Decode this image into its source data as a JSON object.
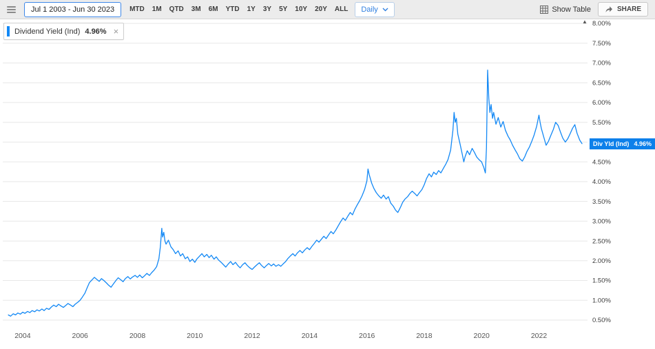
{
  "toolbar": {
    "date_range": "Jul 1 2003 - Jun 30 2023",
    "periods": [
      "MTD",
      "1M",
      "QTD",
      "3M",
      "6M",
      "YTD",
      "1Y",
      "3Y",
      "5Y",
      "10Y",
      "20Y",
      "ALL"
    ],
    "frequency": "Daily",
    "show_table_label": "Show Table",
    "share_label": "SHARE"
  },
  "legend": {
    "series_label": "Dividend Yield (Ind)",
    "value": "4.96%"
  },
  "value_tag": {
    "label": "Div Yld (Ind)",
    "value": "4.96%"
  },
  "icons": {
    "close": "×",
    "axis_scroll": "▲"
  },
  "colors": {
    "line": "#1288f5",
    "tag_bg": "#0d80ea",
    "accent": "#3d87e8",
    "grid": "#e7e7e7"
  },
  "chart_data": {
    "type": "line",
    "title": "Dividend Yield (Ind)",
    "xlabel": "",
    "ylabel": "",
    "xlim": [
      2003.45,
      2023.62
    ],
    "ylim": [
      0.5,
      8.0
    ],
    "grid": "horizontal",
    "legend_position": "top-left",
    "x_ticks": [
      2004,
      2006,
      2008,
      2010,
      2012,
      2014,
      2016,
      2018,
      2020,
      2022
    ],
    "y_ticks": [
      8.0,
      7.5,
      7.0,
      6.5,
      6.0,
      5.5,
      5.0,
      4.5,
      4.0,
      3.5,
      3.0,
      2.5,
      2.0,
      1.5,
      1.0,
      0.5
    ],
    "current_value": 4.96,
    "series": [
      {
        "name": "Dividend Yield (Ind)",
        "points": [
          [
            2003.5,
            0.63
          ],
          [
            2003.58,
            0.6
          ],
          [
            2003.67,
            0.66
          ],
          [
            2003.75,
            0.63
          ],
          [
            2003.83,
            0.68
          ],
          [
            2003.92,
            0.65
          ],
          [
            2004.0,
            0.7
          ],
          [
            2004.08,
            0.67
          ],
          [
            2004.17,
            0.72
          ],
          [
            2004.25,
            0.69
          ],
          [
            2004.33,
            0.74
          ],
          [
            2004.42,
            0.71
          ],
          [
            2004.5,
            0.76
          ],
          [
            2004.58,
            0.73
          ],
          [
            2004.67,
            0.78
          ],
          [
            2004.75,
            0.74
          ],
          [
            2004.83,
            0.8
          ],
          [
            2004.92,
            0.77
          ],
          [
            2005.0,
            0.83
          ],
          [
            2005.08,
            0.88
          ],
          [
            2005.17,
            0.84
          ],
          [
            2005.25,
            0.9
          ],
          [
            2005.33,
            0.86
          ],
          [
            2005.42,
            0.82
          ],
          [
            2005.5,
            0.87
          ],
          [
            2005.58,
            0.92
          ],
          [
            2005.67,
            0.88
          ],
          [
            2005.75,
            0.84
          ],
          [
            2005.83,
            0.9
          ],
          [
            2005.92,
            0.95
          ],
          [
            2006.0,
            1.0
          ],
          [
            2006.08,
            1.08
          ],
          [
            2006.17,
            1.18
          ],
          [
            2006.25,
            1.32
          ],
          [
            2006.33,
            1.45
          ],
          [
            2006.42,
            1.52
          ],
          [
            2006.5,
            1.58
          ],
          [
            2006.58,
            1.53
          ],
          [
            2006.67,
            1.48
          ],
          [
            2006.75,
            1.55
          ],
          [
            2006.83,
            1.5
          ],
          [
            2006.92,
            1.44
          ],
          [
            2007.0,
            1.38
          ],
          [
            2007.08,
            1.33
          ],
          [
            2007.17,
            1.42
          ],
          [
            2007.25,
            1.5
          ],
          [
            2007.33,
            1.57
          ],
          [
            2007.42,
            1.52
          ],
          [
            2007.5,
            1.47
          ],
          [
            2007.58,
            1.55
          ],
          [
            2007.67,
            1.6
          ],
          [
            2007.75,
            1.54
          ],
          [
            2007.83,
            1.59
          ],
          [
            2007.92,
            1.63
          ],
          [
            2008.0,
            1.58
          ],
          [
            2008.08,
            1.64
          ],
          [
            2008.17,
            1.57
          ],
          [
            2008.25,
            1.62
          ],
          [
            2008.33,
            1.68
          ],
          [
            2008.42,
            1.63
          ],
          [
            2008.5,
            1.7
          ],
          [
            2008.58,
            1.76
          ],
          [
            2008.67,
            1.85
          ],
          [
            2008.75,
            2.05
          ],
          [
            2008.8,
            2.35
          ],
          [
            2008.85,
            2.82
          ],
          [
            2008.88,
            2.6
          ],
          [
            2008.92,
            2.72
          ],
          [
            2008.96,
            2.5
          ],
          [
            2009.0,
            2.42
          ],
          [
            2009.08,
            2.52
          ],
          [
            2009.17,
            2.35
          ],
          [
            2009.25,
            2.28
          ],
          [
            2009.33,
            2.18
          ],
          [
            2009.42,
            2.25
          ],
          [
            2009.5,
            2.12
          ],
          [
            2009.58,
            2.18
          ],
          [
            2009.67,
            2.05
          ],
          [
            2009.75,
            2.1
          ],
          [
            2009.83,
            1.98
          ],
          [
            2009.92,
            2.04
          ],
          [
            2010.0,
            1.96
          ],
          [
            2010.08,
            2.05
          ],
          [
            2010.17,
            2.12
          ],
          [
            2010.25,
            2.18
          ],
          [
            2010.33,
            2.1
          ],
          [
            2010.42,
            2.16
          ],
          [
            2010.5,
            2.08
          ],
          [
            2010.58,
            2.14
          ],
          [
            2010.67,
            2.04
          ],
          [
            2010.75,
            2.1
          ],
          [
            2010.83,
            2.02
          ],
          [
            2010.92,
            1.96
          ],
          [
            2011.0,
            1.9
          ],
          [
            2011.08,
            1.84
          ],
          [
            2011.17,
            1.92
          ],
          [
            2011.25,
            1.98
          ],
          [
            2011.33,
            1.9
          ],
          [
            2011.42,
            1.96
          ],
          [
            2011.5,
            1.88
          ],
          [
            2011.58,
            1.82
          ],
          [
            2011.67,
            1.9
          ],
          [
            2011.75,
            1.95
          ],
          [
            2011.83,
            1.88
          ],
          [
            2011.92,
            1.82
          ],
          [
            2012.0,
            1.78
          ],
          [
            2012.08,
            1.84
          ],
          [
            2012.17,
            1.9
          ],
          [
            2012.25,
            1.95
          ],
          [
            2012.33,
            1.88
          ],
          [
            2012.42,
            1.82
          ],
          [
            2012.5,
            1.88
          ],
          [
            2012.58,
            1.93
          ],
          [
            2012.67,
            1.87
          ],
          [
            2012.75,
            1.92
          ],
          [
            2012.83,
            1.86
          ],
          [
            2012.92,
            1.9
          ],
          [
            2013.0,
            1.86
          ],
          [
            2013.08,
            1.92
          ],
          [
            2013.17,
            1.98
          ],
          [
            2013.25,
            2.06
          ],
          [
            2013.33,
            2.12
          ],
          [
            2013.42,
            2.18
          ],
          [
            2013.5,
            2.12
          ],
          [
            2013.58,
            2.2
          ],
          [
            2013.67,
            2.26
          ],
          [
            2013.75,
            2.2
          ],
          [
            2013.83,
            2.27
          ],
          [
            2013.92,
            2.33
          ],
          [
            2014.0,
            2.28
          ],
          [
            2014.08,
            2.36
          ],
          [
            2014.17,
            2.44
          ],
          [
            2014.25,
            2.52
          ],
          [
            2014.33,
            2.47
          ],
          [
            2014.42,
            2.55
          ],
          [
            2014.5,
            2.62
          ],
          [
            2014.58,
            2.56
          ],
          [
            2014.67,
            2.66
          ],
          [
            2014.75,
            2.74
          ],
          [
            2014.83,
            2.68
          ],
          [
            2014.92,
            2.78
          ],
          [
            2015.0,
            2.88
          ],
          [
            2015.08,
            2.98
          ],
          [
            2015.17,
            3.08
          ],
          [
            2015.25,
            3.02
          ],
          [
            2015.33,
            3.12
          ],
          [
            2015.42,
            3.22
          ],
          [
            2015.5,
            3.16
          ],
          [
            2015.58,
            3.3
          ],
          [
            2015.67,
            3.42
          ],
          [
            2015.75,
            3.52
          ],
          [
            2015.83,
            3.64
          ],
          [
            2015.92,
            3.8
          ],
          [
            2016.0,
            4.02
          ],
          [
            2016.04,
            4.32
          ],
          [
            2016.08,
            4.18
          ],
          [
            2016.17,
            3.96
          ],
          [
            2016.25,
            3.82
          ],
          [
            2016.33,
            3.72
          ],
          [
            2016.42,
            3.64
          ],
          [
            2016.5,
            3.58
          ],
          [
            2016.58,
            3.66
          ],
          [
            2016.67,
            3.56
          ],
          [
            2016.75,
            3.62
          ],
          [
            2016.83,
            3.46
          ],
          [
            2016.92,
            3.38
          ],
          [
            2017.0,
            3.28
          ],
          [
            2017.08,
            3.22
          ],
          [
            2017.17,
            3.35
          ],
          [
            2017.25,
            3.48
          ],
          [
            2017.33,
            3.56
          ],
          [
            2017.42,
            3.62
          ],
          [
            2017.5,
            3.7
          ],
          [
            2017.58,
            3.76
          ],
          [
            2017.67,
            3.7
          ],
          [
            2017.75,
            3.64
          ],
          [
            2017.83,
            3.72
          ],
          [
            2017.92,
            3.8
          ],
          [
            2018.0,
            3.92
          ],
          [
            2018.08,
            4.08
          ],
          [
            2018.17,
            4.2
          ],
          [
            2018.25,
            4.12
          ],
          [
            2018.33,
            4.24
          ],
          [
            2018.42,
            4.18
          ],
          [
            2018.5,
            4.28
          ],
          [
            2018.58,
            4.22
          ],
          [
            2018.67,
            4.34
          ],
          [
            2018.75,
            4.44
          ],
          [
            2018.83,
            4.56
          ],
          [
            2018.92,
            4.8
          ],
          [
            2019.0,
            5.3
          ],
          [
            2019.04,
            5.75
          ],
          [
            2019.08,
            5.5
          ],
          [
            2019.12,
            5.6
          ],
          [
            2019.17,
            5.2
          ],
          [
            2019.25,
            4.95
          ],
          [
            2019.33,
            4.68
          ],
          [
            2019.38,
            4.5
          ],
          [
            2019.42,
            4.62
          ],
          [
            2019.5,
            4.78
          ],
          [
            2019.58,
            4.68
          ],
          [
            2019.67,
            4.84
          ],
          [
            2019.75,
            4.74
          ],
          [
            2019.83,
            4.62
          ],
          [
            2019.92,
            4.55
          ],
          [
            2020.0,
            4.5
          ],
          [
            2020.08,
            4.35
          ],
          [
            2020.13,
            4.22
          ],
          [
            2020.17,
            4.85
          ],
          [
            2020.21,
            6.82
          ],
          [
            2020.25,
            6.1
          ],
          [
            2020.29,
            5.75
          ],
          [
            2020.33,
            5.95
          ],
          [
            2020.38,
            5.6
          ],
          [
            2020.42,
            5.75
          ],
          [
            2020.5,
            5.45
          ],
          [
            2020.58,
            5.62
          ],
          [
            2020.67,
            5.38
          ],
          [
            2020.75,
            5.52
          ],
          [
            2020.83,
            5.3
          ],
          [
            2020.92,
            5.15
          ],
          [
            2021.0,
            5.05
          ],
          [
            2021.08,
            4.92
          ],
          [
            2021.17,
            4.8
          ],
          [
            2021.25,
            4.7
          ],
          [
            2021.33,
            4.58
          ],
          [
            2021.42,
            4.52
          ],
          [
            2021.5,
            4.62
          ],
          [
            2021.58,
            4.76
          ],
          [
            2021.67,
            4.88
          ],
          [
            2021.75,
            5.02
          ],
          [
            2021.83,
            5.18
          ],
          [
            2021.92,
            5.4
          ],
          [
            2022.0,
            5.68
          ],
          [
            2022.04,
            5.5
          ],
          [
            2022.08,
            5.35
          ],
          [
            2022.17,
            5.12
          ],
          [
            2022.25,
            4.92
          ],
          [
            2022.33,
            5.02
          ],
          [
            2022.42,
            5.18
          ],
          [
            2022.5,
            5.32
          ],
          [
            2022.58,
            5.5
          ],
          [
            2022.67,
            5.42
          ],
          [
            2022.75,
            5.25
          ],
          [
            2022.83,
            5.1
          ],
          [
            2022.92,
            5.0
          ],
          [
            2023.0,
            5.08
          ],
          [
            2023.08,
            5.2
          ],
          [
            2023.17,
            5.35
          ],
          [
            2023.25,
            5.44
          ],
          [
            2023.33,
            5.22
          ],
          [
            2023.42,
            5.05
          ],
          [
            2023.5,
            4.96
          ]
        ]
      }
    ]
  }
}
